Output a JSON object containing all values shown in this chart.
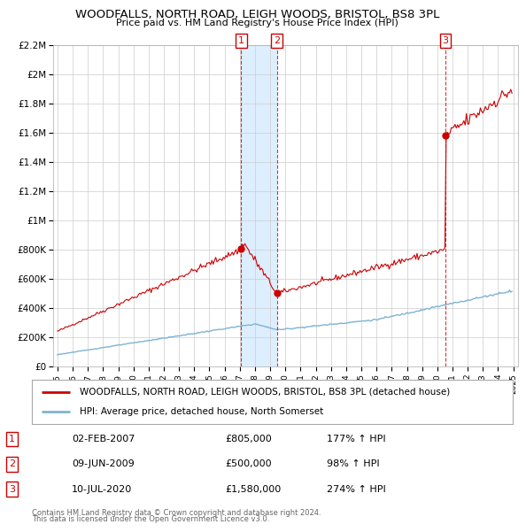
{
  "title": "WOODFALLS, NORTH ROAD, LEIGH WOODS, BRISTOL, BS8 3PL",
  "subtitle": "Price paid vs. HM Land Registry's House Price Index (HPI)",
  "background_color": "#ffffff",
  "plot_bg_color": "#ffffff",
  "grid_color": "#cccccc",
  "red_line_color": "#cc0000",
  "blue_line_color": "#7fb3d3",
  "shade_color": "#ddeeff",
  "legend_label_red": "WOODFALLS, NORTH ROAD, LEIGH WOODS, BRISTOL, BS8 3PL (detached house)",
  "legend_label_blue": "HPI: Average price, detached house, North Somerset",
  "purchases": [
    {
      "num": 1,
      "date": "02-FEB-2007",
      "price": 805000,
      "x": 2007.09,
      "pct": "177%",
      "dir": "↑"
    },
    {
      "num": 2,
      "date": "09-JUN-2009",
      "price": 500000,
      "x": 2009.44,
      "pct": "98%",
      "dir": "↑"
    },
    {
      "num": 3,
      "date": "10-JUL-2020",
      "price": 1580000,
      "x": 2020.53,
      "pct": "274%",
      "dir": "↑"
    }
  ],
  "footer1": "Contains HM Land Registry data © Crown copyright and database right 2024.",
  "footer2": "This data is licensed under the Open Government Licence v3.0.",
  "ylim": [
    0,
    2200000
  ],
  "xlim": [
    1994.7,
    2025.3
  ],
  "yticks": [
    0,
    200000,
    400000,
    600000,
    800000,
    1000000,
    1200000,
    1400000,
    1600000,
    1800000,
    2000000,
    2200000
  ],
  "xticks": [
    1995,
    1996,
    1997,
    1998,
    1999,
    2000,
    2001,
    2002,
    2003,
    2004,
    2005,
    2006,
    2007,
    2008,
    2009,
    2010,
    2011,
    2012,
    2013,
    2014,
    2015,
    2016,
    2017,
    2018,
    2019,
    2020,
    2021,
    2022,
    2023,
    2024,
    2025
  ]
}
